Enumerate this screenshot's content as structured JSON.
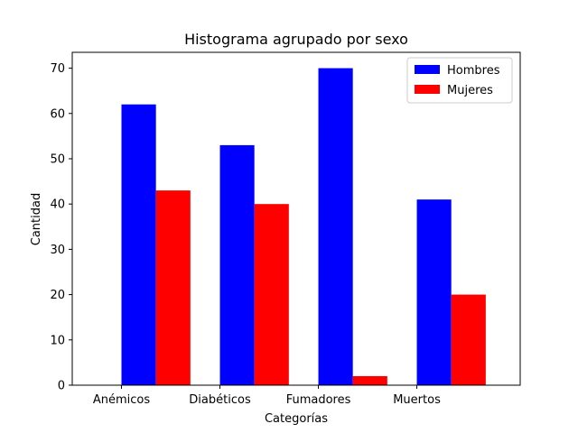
{
  "chart_data": {
    "type": "bar",
    "title": "Histograma agrupado por sexo",
    "xlabel": "Categorías",
    "ylabel": "Cantidad",
    "categories": [
      "Anémicos",
      "Diabéticos",
      "Fumadores",
      "Muertos"
    ],
    "series": [
      {
        "name": "Hombres",
        "values": [
          62,
          53,
          70,
          41
        ],
        "color": "#0000ff"
      },
      {
        "name": "Mujeres",
        "values": [
          43,
          40,
          2,
          20
        ],
        "color": "#ff0000"
      }
    ],
    "ylim": [
      0,
      73.5
    ],
    "yticks": [
      0,
      10,
      20,
      30,
      40,
      50,
      60,
      70
    ],
    "grid": false,
    "legend_position": "top-right"
  }
}
